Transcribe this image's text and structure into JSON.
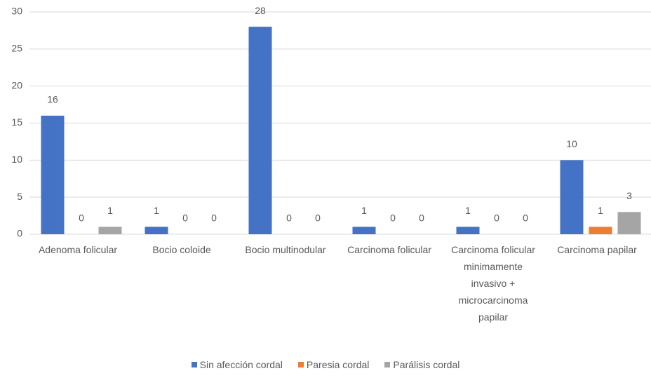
{
  "chart_data": {
    "type": "bar",
    "categories": [
      "Adenoma folicular",
      "Bocio coloide",
      "Bocio multinodular",
      "Carcinoma folicular",
      "Carcinoma folicular minimamente invasivo + microcarcinoma papilar",
      "Carcinoma papilar"
    ],
    "series": [
      {
        "name": "Sin afección cordal",
        "color": "#4472c4",
        "values": [
          16,
          1,
          28,
          1,
          1,
          10
        ]
      },
      {
        "name": "Paresia cordal",
        "color": "#ed7d31",
        "values": [
          0,
          0,
          0,
          0,
          0,
          1
        ]
      },
      {
        "name": "Parálisis cordal",
        "color": "#a5a5a5",
        "values": [
          1,
          0,
          0,
          0,
          0,
          3
        ]
      }
    ],
    "ylim": [
      0,
      30
    ],
    "yticks": [
      0,
      5,
      10,
      15,
      20,
      25,
      30
    ],
    "grid": true,
    "legend": "bottom"
  }
}
